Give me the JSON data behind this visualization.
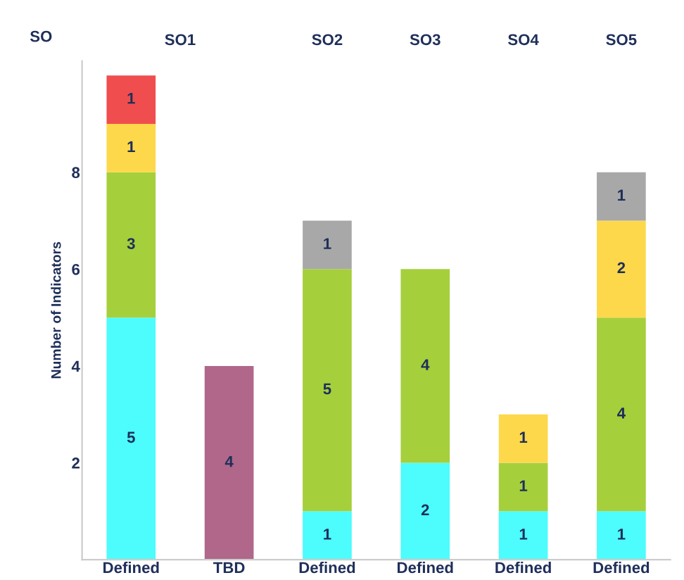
{
  "chart_data": {
    "type": "bar",
    "stacked": true,
    "ylabel": "Number of Indicators",
    "categories": [
      "Defined",
      "TBD",
      "Defined",
      "Defined",
      "Defined",
      "Defined"
    ],
    "series": [
      {
        "color": "#4dfcfc",
        "values": [
          5,
          null,
          1,
          2,
          1,
          1
        ]
      },
      {
        "color": "#a6cf3c",
        "values": [
          3,
          null,
          5,
          4,
          1,
          4
        ]
      },
      {
        "color": "#fdd84a",
        "values": [
          1,
          null,
          null,
          null,
          1,
          2
        ]
      },
      {
        "color": "#f04e4e",
        "values": [
          1,
          null,
          null,
          null,
          null,
          null
        ]
      },
      {
        "color": "#a8a8a8",
        "values": [
          null,
          null,
          1,
          null,
          null,
          1
        ]
      },
      {
        "color": "#b0678a",
        "values": [
          null,
          4,
          null,
          null,
          null,
          null
        ]
      }
    ],
    "ylim": [
      0,
      10.3
    ],
    "yticks": [
      2,
      4,
      6,
      8
    ],
    "data_labels": true,
    "grid": false,
    "annotations": [
      "SO",
      "SO1",
      "SO2",
      "SO3",
      "SO4",
      "SO5"
    ]
  }
}
